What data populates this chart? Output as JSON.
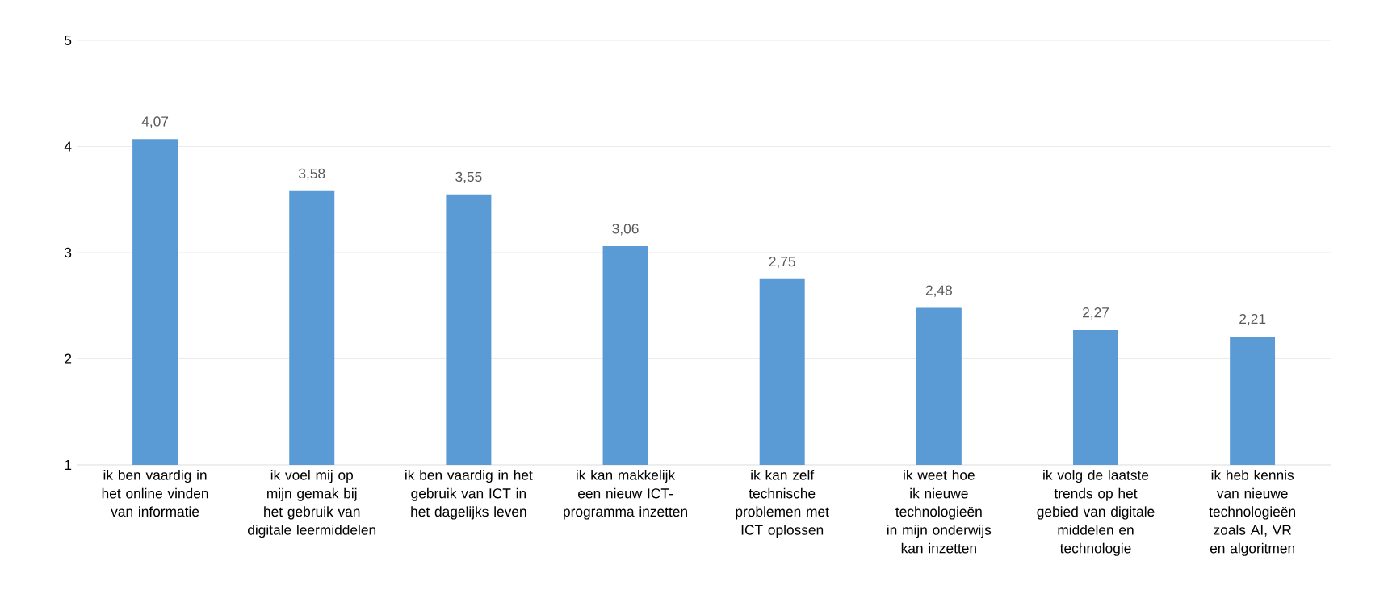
{
  "chart_data": {
    "type": "bar",
    "categories": [
      "ik ben vaardig in het online vinden van informatie",
      "ik voel mij op mijn gemak bij het gebruik van digitale leermiddelen",
      "ik ben vaardig in het gebruik van ICT in het dagelijks leven",
      "ik kan makkelijk een nieuw ICT-programma inzetten",
      "ik kan zelf technische problemen met ICT oplossen",
      "ik weet hoe ik nieuwe technologieën in mijn onderwijs kan inzetten",
      "ik volg de laatste trends op het gebied van digitale middelen en technologie",
      "ik heb kennis van nieuwe technologieën zoals AI, VR en algoritmen"
    ],
    "values": [
      4.07,
      3.58,
      3.55,
      3.06,
      2.75,
      2.48,
      2.27,
      2.21
    ],
    "value_labels": [
      "4,07",
      "3,58",
      "3,55",
      "3,06",
      "2,75",
      "2,48",
      "2,27",
      "2,21"
    ],
    "color": "#5b9bd5",
    "ylim": [
      1,
      5
    ],
    "yticks": [
      1,
      2,
      3,
      4,
      5
    ],
    "grid": "y"
  }
}
